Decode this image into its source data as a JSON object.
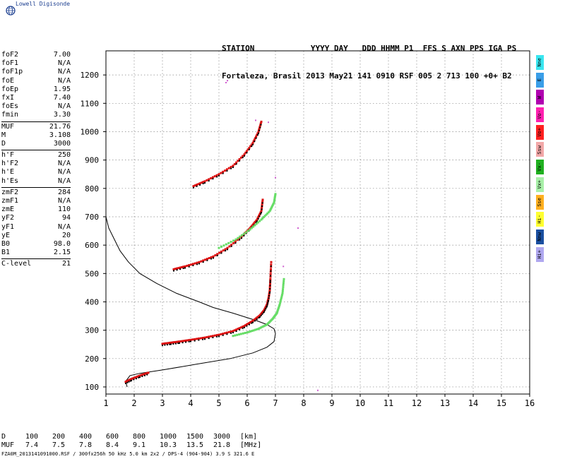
{
  "app": {
    "logo_text": "Lowell Digisonde"
  },
  "header": {
    "line1": "STATION            YYYY DAY   DDD HHMM P1  FFS S AXN PPS IGA PS",
    "line2": "Fortaleza, Brasil 2013 May21 141 0910 RSF 005 2 713 100 +0+ B2"
  },
  "parameters": [
    [
      {
        "label": "foF2",
        "value": "7.00"
      },
      {
        "label": "foF1",
        "value": "N/A"
      },
      {
        "label": "foF1p",
        "value": "N/A"
      },
      {
        "label": "foE",
        "value": "N/A"
      },
      {
        "label": "foEp",
        "value": "1.95"
      },
      {
        "label": "fxI",
        "value": "7.40"
      },
      {
        "label": "foEs",
        "value": "N/A"
      },
      {
        "label": "fmin",
        "value": "3.30"
      }
    ],
    [
      {
        "label": "MUF",
        "value": "21.76"
      },
      {
        "label": "M",
        "value": "3.108"
      },
      {
        "label": "D",
        "value": "3000"
      }
    ],
    [
      {
        "label": "h'F",
        "value": "250"
      },
      {
        "label": "h'F2",
        "value": "N/A"
      },
      {
        "label": "h'E",
        "value": "N/A"
      },
      {
        "label": "h'Es",
        "value": "N/A"
      }
    ],
    [
      {
        "label": "zmF2",
        "value": "284"
      },
      {
        "label": "zmF1",
        "value": "N/A"
      },
      {
        "label": "zmE",
        "value": "110"
      },
      {
        "label": "yF2",
        "value": "94"
      },
      {
        "label": "yF1",
        "value": "N/A"
      },
      {
        "label": "yE",
        "value": "20"
      },
      {
        "label": "B0",
        "value": "98.0"
      },
      {
        "label": "B1",
        "value": "2.15"
      }
    ],
    [
      {
        "label": "C-level",
        "value": "21"
      }
    ]
  ],
  "modes": [
    {
      "label": "Nne",
      "color": "#39e6f0"
    },
    {
      "label": "E",
      "color": "#3a9ee8"
    },
    {
      "label": "W",
      "color": "#b000b0"
    },
    {
      "label": "Vo-",
      "color": "#ff20b0"
    },
    {
      "label": "Vo+",
      "color": "#ff2020"
    },
    {
      "label": "Ssw",
      "color": "#f2a8a8"
    },
    {
      "label": "Vx-",
      "color": "#20b020"
    },
    {
      "label": "Vx+",
      "color": "#a8f0a8"
    },
    {
      "label": "Sse",
      "color": "#ffb020"
    },
    {
      "label": "Hi-",
      "color": "#ffff30"
    },
    {
      "label": "Nnw",
      "color": "#1a4fa0"
    },
    {
      "label": "Hi+",
      "color": "#b0a8f0"
    }
  ],
  "muf_table": {
    "d_label": "D",
    "d_values": [
      "100",
      "200",
      "400",
      "600",
      "800",
      "1000",
      "1500",
      "3000",
      "[km]"
    ],
    "muf_label": "MUF",
    "muf_values": [
      "7.4",
      "7.5",
      "7.8",
      "8.4",
      "9.1",
      "10.3",
      "13.5",
      "21.8",
      "[MHz]"
    ]
  },
  "footer": "FZA0M_2013141091000.RSF / 300fx256h 50 kHz 5.0 km 2x2 / DPS-4 (904-904)  3.9 S 321.6 E",
  "chart_data": {
    "type": "scatter",
    "x_ticks": [
      1,
      2,
      3,
      4,
      5,
      6,
      7,
      8,
      9,
      10,
      11,
      12,
      13,
      14,
      15,
      16
    ],
    "y_ticks": [
      100,
      200,
      300,
      400,
      500,
      600,
      700,
      800,
      900,
      1000,
      1100,
      1200
    ],
    "xlim": [
      1,
      16
    ],
    "ylim": [
      75,
      1285
    ],
    "grid": true,
    "colors": {
      "o_trace": "#dd1111",
      "x_trace": "#66dd66",
      "profile": "#000000",
      "oblique": "#000000"
    },
    "traces": [
      {
        "mode": "O",
        "name": "F-layer 1st hop",
        "x": [
          3.0,
          3.3,
          3.6,
          4.0,
          4.5,
          5.0,
          5.5,
          5.9,
          6.2,
          6.45,
          6.6,
          6.7,
          6.75,
          6.8,
          6.82,
          6.85
        ],
        "y": [
          252,
          256,
          260,
          266,
          274,
          284,
          297,
          315,
          333,
          352,
          370,
          390,
          410,
          440,
          480,
          540
        ]
      },
      {
        "mode": "O",
        "name": "F-layer 2nd hop",
        "x": [
          3.4,
          3.8,
          4.3,
          4.8,
          5.3,
          5.8,
          6.1,
          6.35,
          6.5,
          6.55
        ],
        "y": [
          515,
          525,
          540,
          560,
          590,
          630,
          660,
          690,
          720,
          760
        ]
      },
      {
        "mode": "O",
        "name": "F-layer 3rd hop",
        "x": [
          4.1,
          4.5,
          5.0,
          5.5,
          5.9,
          6.2,
          6.4,
          6.5
        ],
        "y": [
          808,
          825,
          850,
          880,
          920,
          960,
          1000,
          1035
        ]
      },
      {
        "mode": "X",
        "name": "X-trace 1st hop",
        "x": [
          5.5,
          6.0,
          6.4,
          6.7,
          6.9,
          7.05,
          7.15,
          7.25,
          7.3
        ],
        "y": [
          280,
          292,
          305,
          320,
          340,
          360,
          390,
          430,
          480
        ]
      },
      {
        "mode": "X",
        "name": "X-trace 2nd hop",
        "x": [
          5.0,
          5.6,
          6.1,
          6.5,
          6.8,
          6.95,
          7.0
        ],
        "y": [
          590,
          620,
          655,
          690,
          720,
          750,
          780
        ]
      },
      {
        "mode": "O",
        "name": "E-layer",
        "x": [
          1.7,
          1.9,
          2.2,
          2.5
        ],
        "y": [
          118,
          128,
          140,
          150
        ]
      }
    ],
    "profile": {
      "name": "Electron density profile",
      "x": [
        1.75,
        1.7,
        1.85,
        2.2,
        3.0,
        4.2,
        5.4,
        6.2,
        6.7,
        6.95,
        7.0,
        6.95,
        6.7,
        6.3,
        5.5,
        4.8,
        4.3,
        3.5,
        2.8,
        2.2,
        1.8,
        1.5,
        1.3,
        1.1,
        1.0
      ],
      "y": [
        100,
        120,
        140,
        148,
        160,
        180,
        200,
        220,
        240,
        260,
        288,
        305,
        320,
        335,
        360,
        380,
        400,
        430,
        465,
        500,
        540,
        580,
        620,
        660,
        700
      ]
    },
    "dots": [
      {
        "x": 6.75,
        "y": 1033
      },
      {
        "x": 6.3,
        "y": 1040
      },
      {
        "x": 5.3,
        "y": 1180
      },
      {
        "x": 5.25,
        "y": 1173
      },
      {
        "x": 7.0,
        "y": 838
      },
      {
        "x": 7.8,
        "y": 660
      },
      {
        "x": 7.28,
        "y": 525
      },
      {
        "x": 8.5,
        "y": 88
      }
    ]
  }
}
